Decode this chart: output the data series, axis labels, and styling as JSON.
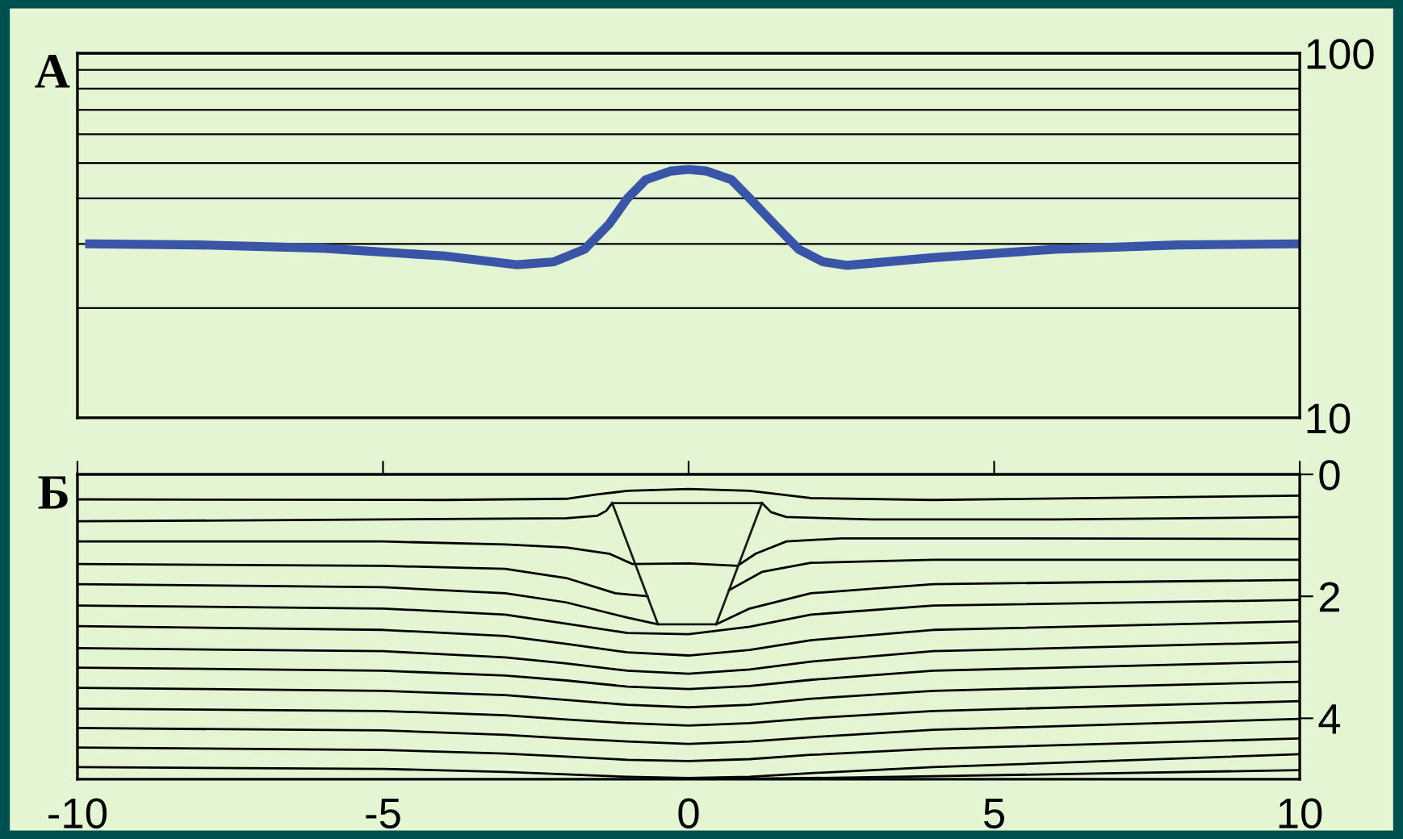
{
  "chart_data": [
    {
      "type": "line",
      "title": "А",
      "log": "y",
      "xlim": [
        -10,
        10
      ],
      "ylim": [
        10,
        100
      ],
      "yticks": [
        10,
        {
          "value": 20,
          "label": null
        },
        {
          "value": 30,
          "label": null
        },
        {
          "value": 40,
          "label": null
        },
        {
          "value": 50,
          "label": null
        },
        {
          "value": 60,
          "label": null
        },
        {
          "value": 70,
          "label": null
        },
        {
          "value": 80,
          "label": null
        },
        {
          "value": 90,
          "label": null
        },
        100
      ],
      "grid": "y",
      "tick_labels": "y",
      "marker": "none",
      "line_style": "solid",
      "series": [
        {
          "color": "#3a55a8",
          "x": [
            -9.8,
            -8,
            -6,
            -4,
            -2.8,
            -2.2,
            -1.7,
            -1.3,
            -1.0,
            -0.7,
            -0.3,
            0,
            0.3,
            0.7,
            1.0,
            1.4,
            1.8,
            2.2,
            2.6,
            4,
            6,
            8,
            10
          ],
          "values": [
            30,
            29.8,
            29.2,
            27.8,
            26.3,
            26.8,
            29,
            34,
            40,
            45,
            47.5,
            48,
            47.5,
            45,
            40,
            34,
            29,
            26.8,
            26.2,
            27.5,
            29,
            29.8,
            30
          ]
        }
      ]
    },
    {
      "type": "line",
      "title": "Б",
      "xlim": [
        -10,
        10
      ],
      "ylim": [
        5,
        0
      ],
      "xticks": [
        -10,
        -5,
        0,
        5,
        10
      ],
      "yticks": [
        0,
        2,
        4
      ],
      "grid": false,
      "marker": "none",
      "line_style": "solid",
      "series": [
        {
          "color": "#000000",
          "x": [
            -10,
            -4,
            -2,
            -1.5,
            -1,
            0,
            1,
            1.5,
            2,
            4,
            10
          ],
          "values": [
            0.41,
            0.42,
            0.4,
            0.33,
            0.27,
            0.24,
            0.27,
            0.33,
            0.39,
            0.42,
            0.35
          ]
        },
        {
          "color": "#000000",
          "x": [
            -10,
            -5,
            -2,
            -1.5,
            -1.35,
            -1.25,
            0,
            1.2,
            1.35,
            1.6,
            3,
            6,
            10
          ],
          "values": [
            0.77,
            0.74,
            0.72,
            0.68,
            0.6,
            0.47,
            null,
            0.47,
            0.62,
            0.7,
            0.74,
            0.74,
            0.7
          ]
        },
        {
          "color": "#000000",
          "x": [
            -10,
            -5,
            -3,
            -2,
            -1.3,
            -0.92,
            0,
            0.8,
            1.1,
            1.6,
            2.5,
            5,
            10
          ],
          "values": [
            1.1,
            1.1,
            1.15,
            1.2,
            1.3,
            1.47,
            1.46,
            1.5,
            1.3,
            1.1,
            1.05,
            1.05,
            1.06
          ]
        },
        {
          "color": "#000000",
          "x": [
            -10,
            -5,
            -3,
            -2,
            -1.2,
            -0.67,
            0,
            0.66,
            1.2,
            2,
            4,
            10
          ],
          "values": [
            1.47,
            1.5,
            1.55,
            1.7,
            1.95,
            2.0,
            null,
            1.9,
            1.6,
            1.45,
            1.4,
            1.4
          ]
        },
        {
          "color": "#000000",
          "x": [
            -10,
            -5,
            -3,
            -2,
            -1,
            -0.5,
            0,
            0.45,
            1,
            2,
            4,
            10
          ],
          "values": [
            1.8,
            1.85,
            1.95,
            2.1,
            2.35,
            2.46,
            null,
            2.46,
            2.2,
            1.95,
            1.8,
            1.73
          ]
        },
        {
          "color": "#000000",
          "x": [
            -10,
            -5,
            -3,
            -2,
            -1,
            0,
            1,
            2,
            4,
            10
          ],
          "values": [
            2.15,
            2.2,
            2.3,
            2.45,
            2.6,
            2.62,
            2.5,
            2.3,
            2.15,
            2.06
          ]
        },
        {
          "color": "#000000",
          "x": [
            -10,
            -5,
            -3,
            -2,
            -1,
            0,
            1,
            2,
            4,
            10
          ],
          "values": [
            2.49,
            2.55,
            2.65,
            2.78,
            2.92,
            2.97,
            2.88,
            2.72,
            2.55,
            2.41
          ]
        },
        {
          "color": "#000000",
          "x": [
            -10,
            -5,
            -3,
            -2,
            -1,
            0,
            1,
            2,
            4,
            10
          ],
          "values": [
            2.85,
            2.9,
            3.0,
            3.1,
            3.22,
            3.27,
            3.2,
            3.07,
            2.9,
            2.75
          ]
        },
        {
          "color": "#000000",
          "x": [
            -10,
            -5,
            -3,
            -2,
            -1,
            0,
            1,
            2,
            4,
            10
          ],
          "values": [
            3.17,
            3.22,
            3.3,
            3.38,
            3.48,
            3.52,
            3.47,
            3.37,
            3.22,
            3.07
          ]
        },
        {
          "color": "#000000",
          "x": [
            -10,
            -5,
            -3,
            -2,
            -1,
            0,
            1,
            2,
            4,
            10
          ],
          "values": [
            3.5,
            3.55,
            3.62,
            3.7,
            3.78,
            3.82,
            3.78,
            3.68,
            3.55,
            3.4
          ]
        },
        {
          "color": "#000000",
          "x": [
            -10,
            -5,
            -3,
            -2,
            -1,
            0,
            1,
            2,
            4,
            10
          ],
          "values": [
            3.84,
            3.88,
            3.95,
            4.02,
            4.08,
            4.12,
            4.08,
            4.0,
            3.88,
            3.72
          ]
        },
        {
          "color": "#000000",
          "x": [
            -10,
            -5,
            -3,
            -2,
            -1,
            0,
            1,
            2,
            4,
            10
          ],
          "values": [
            4.16,
            4.2,
            4.27,
            4.33,
            4.38,
            4.42,
            4.38,
            4.31,
            4.19,
            4.01
          ]
        },
        {
          "color": "#000000",
          "x": [
            -10,
            -5,
            -3,
            -2,
            -1,
            0,
            1,
            2,
            4,
            10
          ],
          "values": [
            4.48,
            4.52,
            4.58,
            4.63,
            4.68,
            4.7,
            4.67,
            4.6,
            4.5,
            4.33
          ]
        },
        {
          "color": "#000000",
          "x": [
            -10,
            -5,
            -3,
            -2,
            -1,
            0,
            1,
            2,
            4,
            10
          ],
          "values": [
            4.8,
            4.83,
            4.88,
            4.92,
            4.96,
            4.98,
            4.96,
            4.9,
            4.8,
            4.59
          ]
        },
        {
          "color": "#000000",
          "x": [
            0,
            2,
            4,
            7,
            10
          ],
          "values": [
            5.0,
            4.98,
            4.95,
            4.9,
            4.85
          ]
        },
        {
          "color": "#1a1a1a",
          "x": [
            -1.25,
            1.2
          ],
          "values": [
            0.47,
            0.47
          ]
        },
        {
          "color": "#1a1a1a",
          "x": [
            -1.25,
            -0.5,
            0.45,
            1.2
          ],
          "values": [
            0.47,
            2.46,
            2.46,
            0.47
          ]
        }
      ]
    }
  ]
}
